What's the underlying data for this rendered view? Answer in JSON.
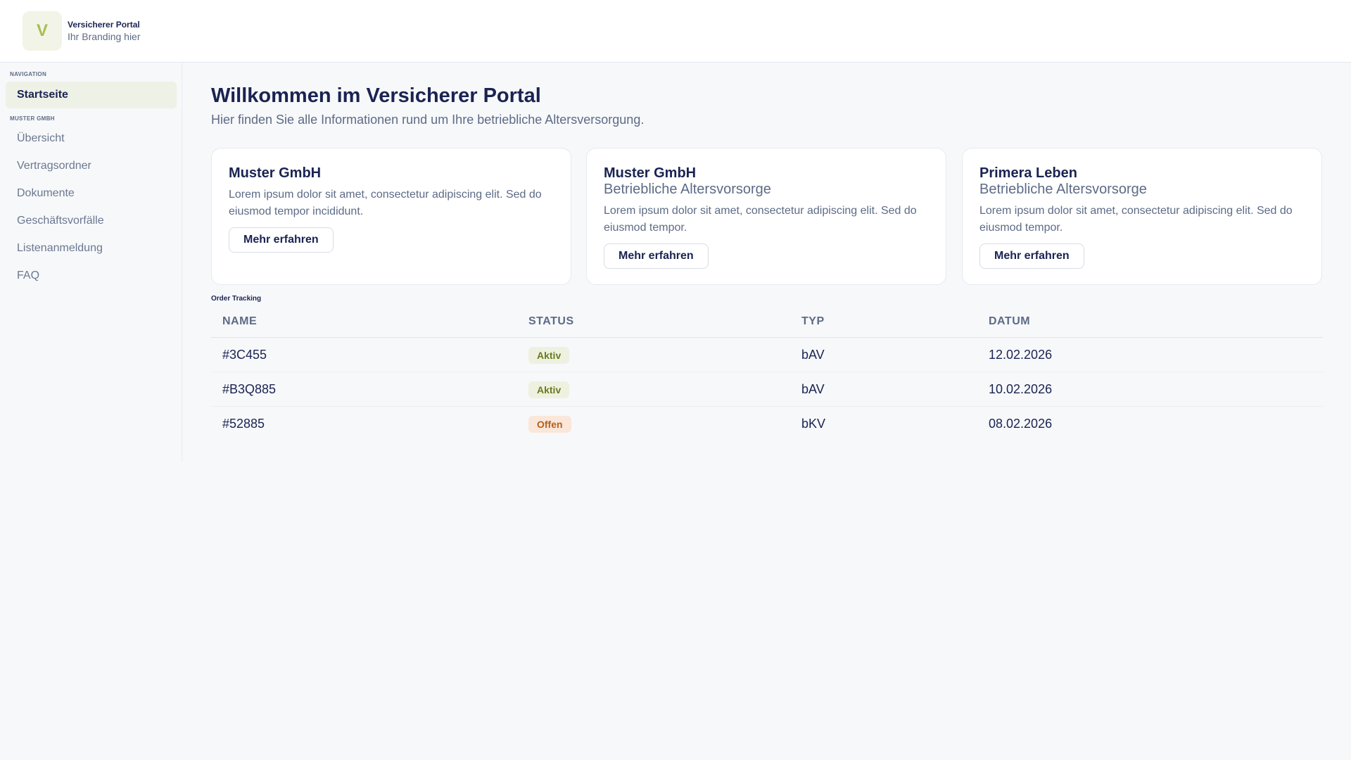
{
  "header": {
    "logo_letter": "V",
    "brand_title": "Versicherer Portal",
    "brand_subtitle": "Ihr Branding hier"
  },
  "sidebar": {
    "section_navigation": "NAVIGATION",
    "home_label": "Startseite",
    "section_company": "MUSTER GMBH",
    "items": [
      {
        "label": "Übersicht"
      },
      {
        "label": "Vertragsordner"
      },
      {
        "label": "Dokumente"
      },
      {
        "label": "Geschäftsvorfälle"
      },
      {
        "label": "Listenanmeldung"
      },
      {
        "label": "FAQ"
      }
    ]
  },
  "main": {
    "title": "Willkommen im Versicherer Portal",
    "subtitle": "Hier finden Sie alle Informationen rund um Ihre betriebliche Altersversorgung."
  },
  "cards": [
    {
      "title": "Muster GmbH",
      "subtitle": "",
      "text": "Lorem ipsum dolor sit amet, consectetur adipiscing elit. Sed do eiusmod tempor incididunt.",
      "button": "Mehr erfahren"
    },
    {
      "title": "Muster GmbH",
      "subtitle": "Betriebliche Altersvorsorge",
      "text": "Lorem ipsum dolor sit amet, consectetur adipiscing elit. Sed do eiusmod tempor.",
      "button": "Mehr erfahren"
    },
    {
      "title": "Primera Leben",
      "subtitle": "Betriebliche Altersvorsorge",
      "text": "Lorem ipsum dolor sit amet, consectetur adipiscing elit. Sed do eiusmod tempor.",
      "button": "Mehr erfahren"
    }
  ],
  "table": {
    "caption": "Order Tracking",
    "headers": [
      "NAME",
      "STATUS",
      "TYP",
      "DATUM"
    ],
    "rows": [
      {
        "name": "#3C455",
        "status": "Aktiv",
        "typ": "bAV",
        "datum": "12.02.2026"
      },
      {
        "name": "#B3Q885",
        "status": "Aktiv",
        "typ": "bAV",
        "datum": "10.02.2026"
      },
      {
        "name": "#52885",
        "status": "Offen",
        "typ": "bKV",
        "datum": "08.02.2026"
      }
    ]
  },
  "colors": {
    "accent": "#a8bd58",
    "text_primary": "#1a2352",
    "text_secondary": "#5d6b86",
    "status_aktiv_bg": "#eef1e0",
    "status_aktiv_fg": "#6b7a1f",
    "status_offen_bg": "#fbe6da",
    "status_offen_fg": "#b5601a"
  }
}
